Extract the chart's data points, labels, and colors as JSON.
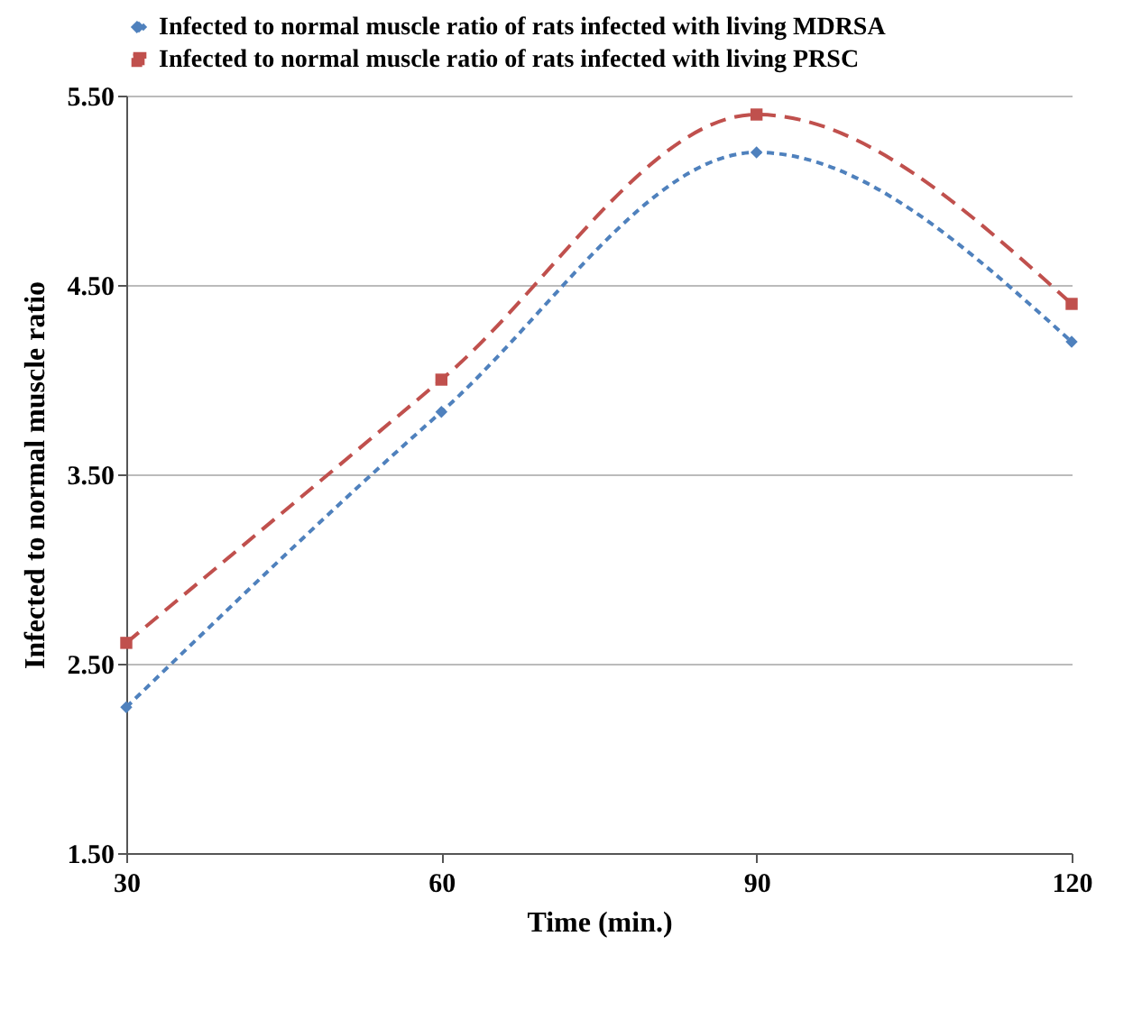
{
  "chart_data": {
    "type": "line",
    "xlabel": "Time (min.)",
    "ylabel": "Infected to normal muscle ratio",
    "x": [
      30,
      60,
      90,
      120
    ],
    "series": [
      {
        "name": "Infected to normal muscle ratio of rats infected with  living MDRSA",
        "color": "#4f81bd",
        "values": [
          2.27,
          3.83,
          5.2,
          4.2
        ],
        "marker": "diamond",
        "line_style": "dotted"
      },
      {
        "name": "Infected to normal muscle ratio of rats infected with  living PRSC",
        "color": "#c0504d",
        "values": [
          2.61,
          4.0,
          5.4,
          4.4
        ],
        "marker": "square",
        "line_style": "dashed"
      }
    ],
    "xlim": [
      30,
      120
    ],
    "xticks": [
      30,
      60,
      90,
      120
    ],
    "ylim": [
      1.5,
      5.5
    ],
    "yticks": [
      {
        "value": 1.5,
        "label": "1.50"
      },
      {
        "value": 2.5,
        "label": "2.50"
      },
      {
        "value": 3.5,
        "label": "3.50"
      },
      {
        "value": 4.5,
        "label": "4.50"
      },
      {
        "value": 5.5,
        "label": "5.50"
      }
    ],
    "grid": "y",
    "legend": "top"
  }
}
